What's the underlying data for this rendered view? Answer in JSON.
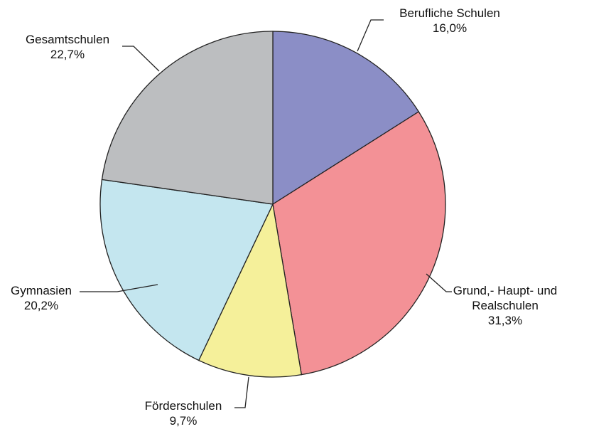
{
  "chart_data": {
    "type": "pie",
    "categories": [
      "Berufliche Schulen",
      "Grund,- Haupt- und Realschulen",
      "Förderschulen",
      "Gymnasien",
      "Gesamtschulen"
    ],
    "values": [
      16.0,
      31.3,
      9.7,
      20.2,
      22.7
    ],
    "value_labels": [
      "16,0%",
      "31,3%",
      "9,7%",
      "20,2%",
      "22,7%"
    ],
    "colors": [
      "#8b8ec6",
      "#f39196",
      "#f5f09a",
      "#c4e6ef",
      "#bcbec0"
    ]
  }
}
